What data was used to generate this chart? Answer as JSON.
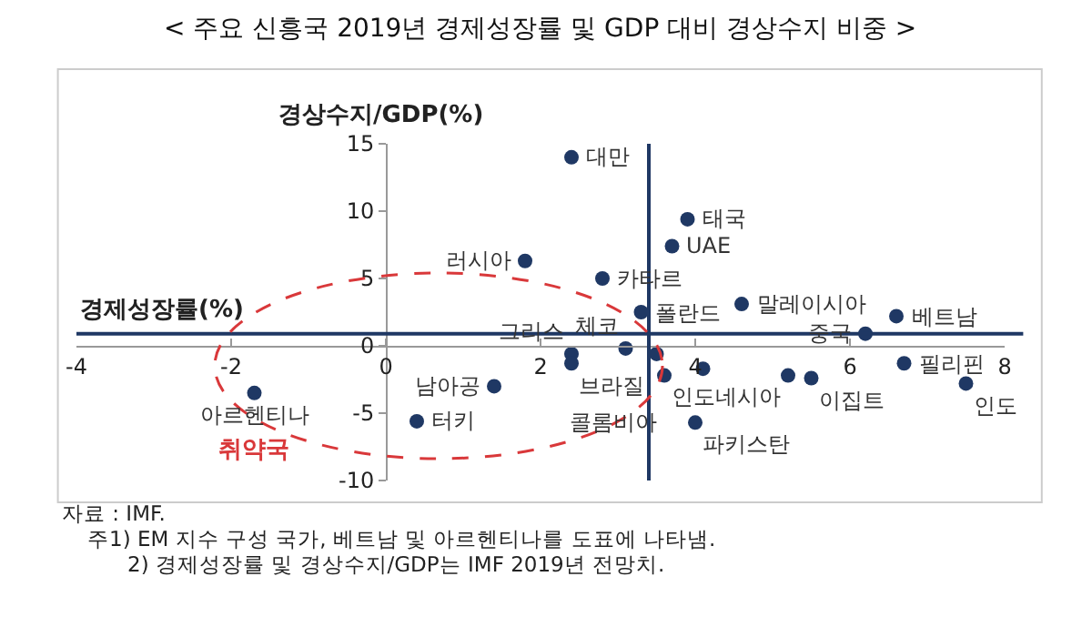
{
  "chart_data": {
    "type": "scatter",
    "title": "< 주요 신흥국 2019년 경제성장률 및 GDP 대비 경상수지 비중 >",
    "xlabel": "경제성장률(%)",
    "ylabel": "경상수지/GDP(%)",
    "x": [
      -1.7,
      0.4,
      1.4,
      1.8,
      2.4,
      2.4,
      2.4,
      3.1,
      2.8,
      3.3,
      3.5,
      3.6,
      3.7,
      3.9,
      4.1,
      4.0,
      4.6,
      5.2,
      5.5,
      6.2,
      6.6,
      6.7,
      7.5
    ],
    "series": [
      {
        "color": "#1f3864",
        "values": [
          -3.5,
          -5.6,
          -3.0,
          6.3,
          14.0,
          -0.6,
          -1.3,
          -0.2,
          5.0,
          2.5,
          -0.6,
          -2.2,
          7.4,
          9.4,
          -1.7,
          -5.7,
          3.1,
          -2.2,
          -2.4,
          0.9,
          2.2,
          -1.3,
          -2.8
        ]
      }
    ],
    "marker": "circle",
    "xlim": [
      -4,
      8
    ],
    "xticks": [
      -4,
      -2,
      0,
      2,
      4,
      6,
      8
    ],
    "ylim": [
      -10,
      15
    ],
    "yticks": [
      -10,
      -5,
      0,
      5,
      10,
      15
    ],
    "ref_lines": [
      {
        "axis": "x",
        "value": 3.4,
        "color": "#1f3864"
      },
      {
        "axis": "y",
        "value": 0.9,
        "color": "#1f3864"
      }
    ],
    "annotations": [
      {
        "text": "대만",
        "x": 2.4,
        "y": 14.0
      },
      {
        "text": "태국",
        "x": 3.9,
        "y": 9.4
      },
      {
        "text": "UAE",
        "x": 3.7,
        "y": 7.4
      },
      {
        "text": "러시아",
        "x": 1.8,
        "y": 6.3
      },
      {
        "text": "카타르",
        "x": 2.8,
        "y": 5.0
      },
      {
        "text": "체코",
        "x": 3.1,
        "y": -0.2
      },
      {
        "text": "폴란드",
        "x": 3.3,
        "y": 2.5
      },
      {
        "text": "말레이시아",
        "x": 4.6,
        "y": 3.1
      },
      {
        "text": "중국",
        "x": 6.2,
        "y": 0.9
      },
      {
        "text": "베트남",
        "x": 6.6,
        "y": 2.2
      },
      {
        "text": "아르헨티나",
        "x": -1.7,
        "y": -3.5
      },
      {
        "text": "그리스",
        "x": 2.4,
        "y": -0.6
      },
      {
        "text": "브라질",
        "x": 2.4,
        "y": -1.3
      },
      {
        "text": "남아공",
        "x": 1.4,
        "y": -3.0
      },
      {
        "text": "터키",
        "x": 0.4,
        "y": -5.6
      },
      {
        "text": "인도네시아",
        "x": 5.2,
        "y": -2.2
      },
      {
        "text": "콜롬비아",
        "x": 3.6,
        "y": -2.2
      },
      {
        "text": "파키스탄",
        "x": 4.0,
        "y": -5.7
      },
      {
        "text": "이집트",
        "x": 5.5,
        "y": -2.4
      },
      {
        "text": "필리핀",
        "x": 6.7,
        "y": -1.3
      },
      {
        "text": "인도",
        "x": 7.5,
        "y": -2.8
      },
      "취약국",
      "자료 : IMF.",
      "주1) EM 지수 구성 국가, 베트남 및 아르헨티나를 도표에 나타냄.",
      "2) 경제성장률 및 경상수지/GDP는 IMF 2019년 전망치."
    ]
  }
}
